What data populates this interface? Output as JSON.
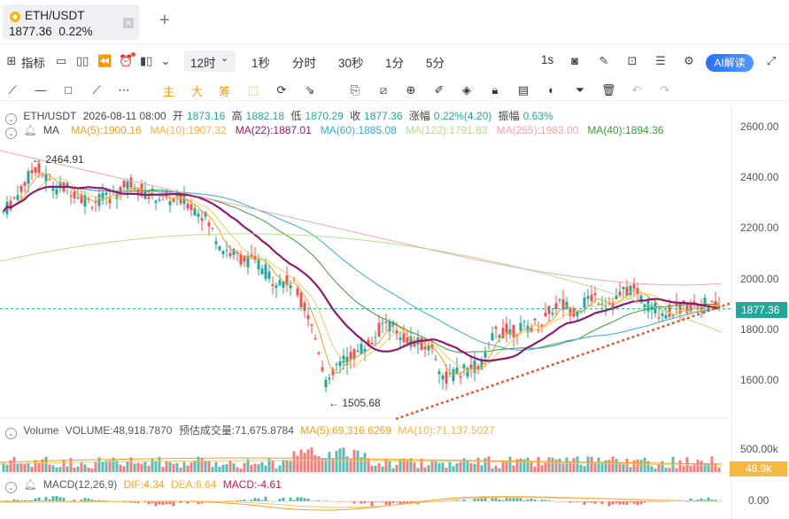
{
  "tab": {
    "symbol": "ETH/USDT",
    "price": "1877.36",
    "change": "0.22%",
    "coin_icon": "binance-coin-icon"
  },
  "toolbar": {
    "indicators_label": "指标",
    "timeframe_selected": "12时",
    "timeframes": [
      "1秒",
      "分时",
      "30秒",
      "1分",
      "5分"
    ],
    "interval_right": "1s",
    "ai_label": "AI解读"
  },
  "drawing_tools": {
    "labels": [
      "主",
      "大",
      "筹"
    ]
  },
  "ohlc": {
    "pair": "ETH/USDT",
    "datetime": "2026-08-11 08:00",
    "open_label": "开",
    "open": "1873.16",
    "high_label": "高",
    "high": "1882.18",
    "low_label": "低",
    "low": "1870.29",
    "close_label": "收",
    "close": "1877.36",
    "change_label": "涨幅",
    "change": "0.22%(4.20)",
    "amp_label": "振幅",
    "amp": "0.63%"
  },
  "ma": {
    "label": "MA",
    "items": [
      {
        "text": "MA(5):1900.16",
        "color": "#f0a020"
      },
      {
        "text": "MA(10):1907.32",
        "color": "#f5b342"
      },
      {
        "text": "MA(22):1887.01",
        "color": "#8e1b6e"
      },
      {
        "text": "MA(60):1885.08",
        "color": "#3aa9d6"
      },
      {
        "text": "MA(122):1791.83",
        "color": "#b7dd8e"
      },
      {
        "text": "MA(255):1983.00",
        "color": "#f0a6a6"
      },
      {
        "text": "MA(40):1894.36",
        "color": "#3b9b3b"
      }
    ]
  },
  "y_axis": [
    "2600.00",
    "2400.00",
    "2200.00",
    "2000.00",
    "1800.00",
    "1600.00"
  ],
  "last_price": "1877.36",
  "annotations": {
    "high": "2464.91",
    "low": "1505.68"
  },
  "volume": {
    "label": "Volume",
    "text": "VOLUME:48,918.7870",
    "est_label": "预估成交量:71,675.8784",
    "ma5": "MA(5):69,316.6269",
    "ma10": "MA(10):71,137.5027",
    "axis": "500.00k",
    "tag": "48.9k"
  },
  "macd": {
    "label": "MACD(12,26,9)",
    "dif": "DIF:4.34",
    "dea": "DEA:6.64",
    "macd": "MACD:-4.61",
    "axis": "0.00"
  },
  "colors": {
    "up": "#26a69a",
    "down": "#ef5350",
    "trend": "#e8572a"
  }
}
